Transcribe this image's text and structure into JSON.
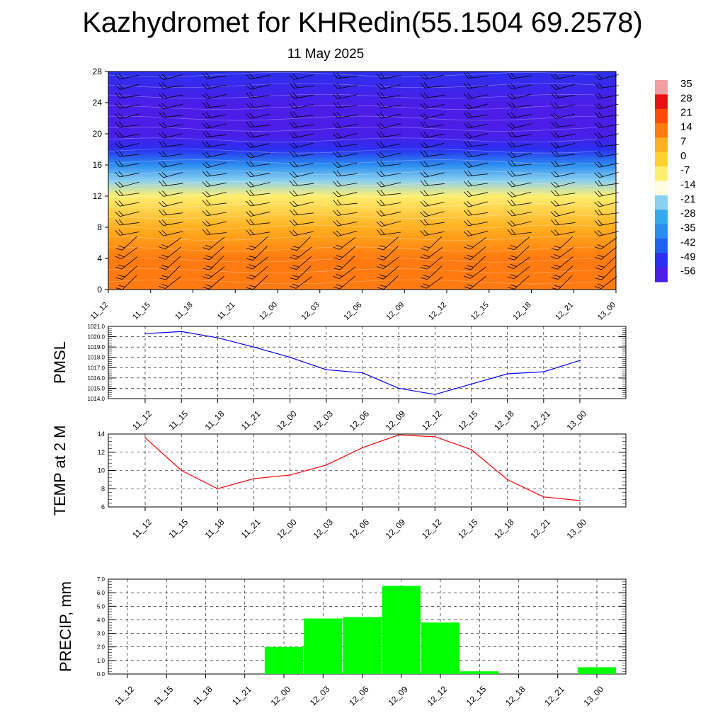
{
  "title": "Kazhydromet for KHRedin(55.1504 69.2578)",
  "subtitle": "11 May 2025",
  "time_labels": [
    "11_12",
    "11_15",
    "11_18",
    "11_21",
    "12_00",
    "12_03",
    "12_06",
    "12_09",
    "12_12",
    "12_15",
    "12_18",
    "12_21",
    "13_00"
  ],
  "colors": {
    "pmsl_line": "#0000ff",
    "temp_line": "#ff0000",
    "precip_bar": "#00ff00",
    "grid": "#000000"
  },
  "chart_data": [
    {
      "type": "heatmap",
      "description_type": "height-time cross section with wind barbs",
      "xlabels": [
        "11_12",
        "11_15",
        "11_18",
        "11_21",
        "12_00",
        "12_03",
        "12_06",
        "12_09",
        "12_12",
        "12_15",
        "12_18",
        "12_21",
        "13_00"
      ],
      "yticks": [
        "0",
        "4",
        "8",
        "12",
        "16",
        "20",
        "24",
        "28"
      ],
      "ylim": [
        0,
        28
      ],
      "colorbar_labels": [
        "35",
        "28",
        "21",
        "14",
        "7",
        "0",
        "-7",
        "-14",
        "-21",
        "-28",
        "-35",
        "-42",
        "-49",
        "-56"
      ],
      "temperature_profile": [
        {
          "height": 0,
          "value": 12
        },
        {
          "height": 4,
          "value": 8
        },
        {
          "height": 8,
          "value": 3
        },
        {
          "height": 12,
          "value": -10
        },
        {
          "height": 14,
          "value": -22
        },
        {
          "height": 16,
          "value": -35
        },
        {
          "height": 18,
          "value": -50
        },
        {
          "height": 20,
          "value": -56
        },
        {
          "height": 24,
          "value": -60
        },
        {
          "height": 28,
          "value": -54
        }
      ]
    },
    {
      "type": "line",
      "ylabel": "PMSL",
      "categories": [
        "11_12",
        "11_15",
        "11_18",
        "11_21",
        "12_00",
        "12_03",
        "12_06",
        "12_09",
        "12_12",
        "12_15",
        "12_18",
        "12_21",
        "13_00"
      ],
      "values": [
        1020.3,
        1020.5,
        1019.9,
        1019.0,
        1018.0,
        1016.8,
        1016.5,
        1015.0,
        1014.4,
        1015.4,
        1016.4,
        1016.6,
        1017.7
      ],
      "ylim": [
        1014.0,
        1021.0
      ],
      "yticks": [
        "1014.0",
        "1015.0",
        "1016.0",
        "1017.0",
        "1018.0",
        "1019.0",
        "1020.0",
        "1021.0"
      ]
    },
    {
      "type": "line",
      "ylabel": "TEMP at 2 M",
      "categories": [
        "11_12",
        "11_15",
        "11_18",
        "11_21",
        "12_00",
        "12_03",
        "12_06",
        "12_09",
        "12_12",
        "12_15",
        "12_18",
        "12_21",
        "13_00"
      ],
      "values": [
        13.6,
        10.0,
        8.0,
        9.1,
        9.5,
        10.6,
        12.5,
        13.9,
        13.7,
        12.3,
        9.0,
        7.1,
        6.7
      ],
      "ylim": [
        6,
        14
      ],
      "yticks": [
        "6",
        "8",
        "10",
        "12",
        "14"
      ]
    },
    {
      "type": "bar",
      "ylabel": "PRECIP, mm",
      "categories": [
        "11_12",
        "11_15",
        "11_18",
        "11_21",
        "12_00",
        "12_03",
        "12_06",
        "12_09",
        "12_12",
        "12_15",
        "12_18",
        "12_21",
        "13_00"
      ],
      "values": [
        0,
        0,
        0,
        0,
        2.0,
        4.1,
        4.2,
        6.5,
        3.8,
        0.2,
        0,
        0,
        0.5
      ],
      "ylim": [
        0,
        7.0
      ],
      "yticks": [
        "0.0",
        "1.0",
        "2.0",
        "3.0",
        "4.0",
        "5.0",
        "6.0",
        "7.0"
      ]
    }
  ]
}
